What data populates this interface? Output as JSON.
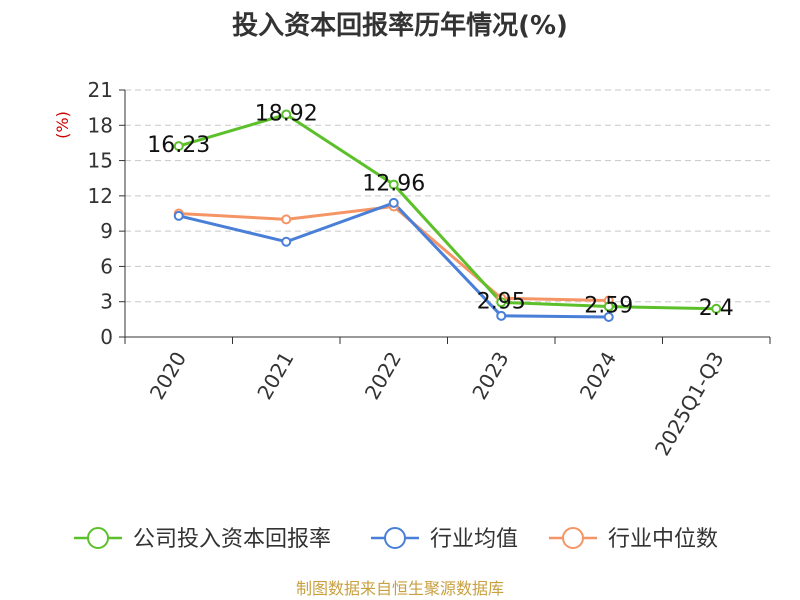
{
  "chart_data": {
    "type": "line",
    "title": "投入资本回报率历年情况(%)",
    "ylabel": "(%)",
    "xlabel": "",
    "categories": [
      "2020",
      "2021",
      "2022",
      "2023",
      "2024",
      "2025Q1-Q3"
    ],
    "ylim": [
      0,
      21
    ],
    "yticks": [
      0,
      3,
      6,
      9,
      12,
      15,
      18,
      21
    ],
    "grid": true,
    "legend_position": "bottom",
    "series": [
      {
        "name": "公司投入资本回报率",
        "color": "#5cc02a",
        "values": [
          16.23,
          18.92,
          12.96,
          2.95,
          2.59,
          2.4
        ],
        "labels": [
          "16.23",
          "18.92",
          "12.96",
          "2.95",
          "2.59",
          "2.4"
        ]
      },
      {
        "name": "行业均值",
        "color": "#4a7fd8",
        "values": [
          10.3,
          8.1,
          11.4,
          1.8,
          1.7,
          null
        ]
      },
      {
        "name": "行业中位数",
        "color": "#f59565",
        "values": [
          10.5,
          10.0,
          11.1,
          3.3,
          3.1,
          null
        ]
      }
    ]
  },
  "source": "制图数据来自恒生聚源数据库"
}
